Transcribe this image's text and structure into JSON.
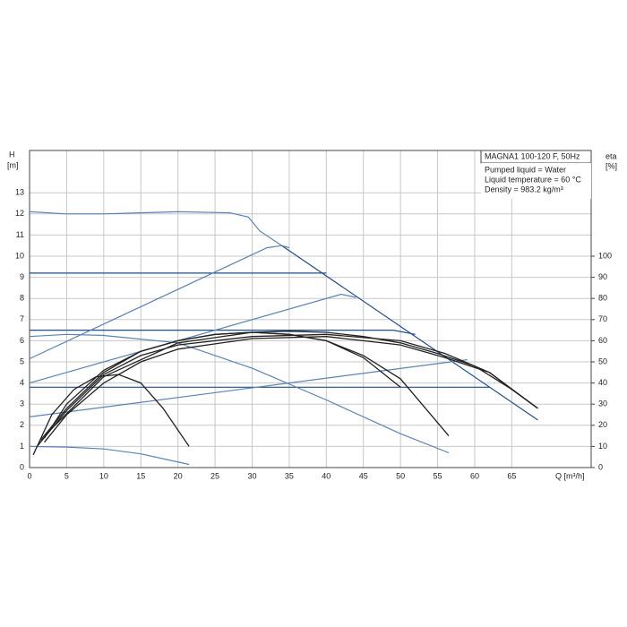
{
  "chart_data": {
    "type": "line",
    "y_label": "H",
    "y_unit": "[m]",
    "y2_label": "eta",
    "y2_unit": "[%]",
    "x_label": "Q [m³/h]",
    "info": {
      "title": "MAGNA1 100-120 F, 50Hz",
      "lines": [
        "Pumped liquid = Water",
        "Liquid temperature = 60 °C",
        "Density = 983.2 kg/m³"
      ]
    },
    "xlim": [
      0,
      75.7
    ],
    "xticks": [
      0,
      5,
      10,
      15,
      20,
      25,
      30,
      35,
      40,
      45,
      50,
      55,
      60,
      65
    ],
    "ylim": [
      0,
      15
    ],
    "yticks": [
      0,
      1,
      2,
      3,
      4,
      5,
      6,
      7,
      8,
      9,
      10,
      11,
      12,
      13
    ],
    "y2lim": [
      0,
      150
    ],
    "y2ticks": [
      0,
      10,
      20,
      30,
      40,
      50,
      60,
      70,
      80,
      90,
      100
    ],
    "grid": true,
    "series": [
      {
        "color": "#5a83b4",
        "x": [
          0,
          5,
          10,
          20,
          27,
          29.5,
          31,
          34
        ],
        "values": [
          12.1,
          12.0,
          12.0,
          12.1,
          12.05,
          11.85,
          11.2,
          10.5
        ]
      },
      {
        "color": "#1f4e8c",
        "x": [
          34,
          68.5
        ],
        "values": [
          10.5,
          2.25
        ]
      },
      {
        "color": "#1f4e8c",
        "x": [
          0,
          40
        ],
        "values": [
          9.2,
          9.2
        ]
      },
      {
        "color": "#1f4e8c",
        "x": [
          0,
          49,
          52
        ],
        "values": [
          6.5,
          6.5,
          6.3
        ]
      },
      {
        "color": "#1f4e8c",
        "x": [
          0,
          62
        ],
        "values": [
          3.8,
          3.8
        ]
      },
      {
        "color": "#5a83b4",
        "x": [
          0,
          32,
          34,
          35
        ],
        "values": [
          5.15,
          10.4,
          10.5,
          10.4
        ]
      },
      {
        "color": "#5a83b4",
        "x": [
          0,
          42,
          44
        ],
        "values": [
          4.0,
          8.2,
          8.05
        ]
      },
      {
        "color": "#5a83b4",
        "x": [
          0,
          59
        ],
        "values": [
          2.4,
          5.1
        ]
      },
      {
        "color": "#5a83b4",
        "x": [
          0,
          5,
          10,
          15,
          21.5
        ],
        "values": [
          1.0,
          0.97,
          0.88,
          0.65,
          0.15
        ]
      },
      {
        "color": "#5a83b4",
        "x": [
          0,
          5,
          10,
          20,
          30,
          40,
          50,
          56.5
        ],
        "values": [
          6.2,
          6.3,
          6.25,
          5.9,
          4.7,
          3.2,
          1.6,
          0.7
        ]
      },
      {
        "color": "#222222",
        "axis": "y2",
        "x": [
          1.5,
          5,
          10,
          15,
          20,
          25,
          30,
          35,
          40,
          45,
          50,
          56.5
        ],
        "values": [
          13,
          28,
          45,
          55,
          60,
          63,
          64,
          63,
          60,
          53,
          42,
          15
        ]
      },
      {
        "color": "#222222",
        "axis": "y2",
        "x": [
          2,
          5,
          10,
          15,
          20,
          25,
          30,
          35,
          40,
          45,
          50,
          55,
          60,
          65,
          68.5
        ],
        "values": [
          14,
          30,
          46,
          55,
          60,
          63,
          64,
          64.5,
          64,
          62,
          59,
          54,
          48,
          37,
          28
        ]
      },
      {
        "color": "#222222",
        "axis": "y2",
        "x": [
          1,
          5,
          10,
          15,
          20,
          30,
          40,
          50,
          56,
          62,
          68.5
        ],
        "values": [
          10,
          27,
          44,
          53,
          58,
          62,
          63,
          60,
          54,
          45,
          28
        ]
      },
      {
        "color": "#222222",
        "axis": "y2",
        "x": [
          2,
          5,
          10,
          15,
          20,
          30,
          40,
          50,
          56,
          62,
          65,
          68.5
        ],
        "values": [
          12,
          25,
          40,
          50,
          56,
          61,
          62,
          58,
          52,
          45,
          37,
          28
        ]
      },
      {
        "color": "#222222",
        "axis": "y2",
        "x": [
          2,
          10,
          20,
          30,
          35,
          40,
          45,
          50
        ],
        "values": [
          15,
          43,
          59,
          64,
          63,
          60,
          52,
          38
        ]
      },
      {
        "color": "#222222",
        "axis": "y2",
        "x": [
          0.5,
          3,
          6,
          9,
          12,
          15,
          18,
          21.5
        ],
        "values": [
          6,
          25,
          37,
          43,
          44,
          40,
          28,
          10
        ]
      }
    ]
  }
}
